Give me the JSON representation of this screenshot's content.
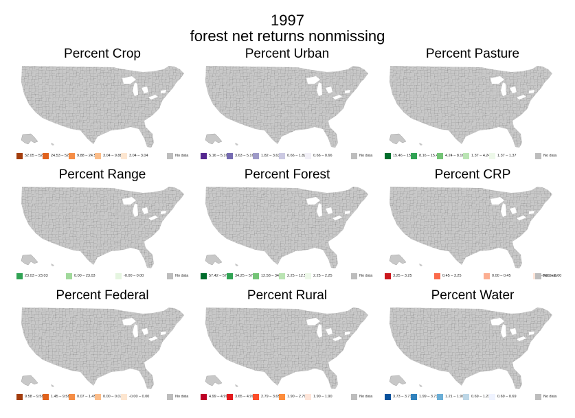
{
  "title": {
    "line1": "1997",
    "line2": "forest net returns nonmissing"
  },
  "colors": {
    "map_fill": "#c8c8c8",
    "map_border": "#6f6f6f",
    "no_data": "#bdbdbd"
  },
  "chart_data": [
    {
      "type": "choropleth",
      "title": "Percent Crop",
      "map_data": "none",
      "legend": [
        {
          "label": "52.05 – 52.05",
          "color": "#a33d0d"
        },
        {
          "label": "24.53 – 52.05",
          "color": "#e0621d"
        },
        {
          "label": "9.88 – 24.53",
          "color": "#f58d45"
        },
        {
          "label": "3.04 – 9.88",
          "color": "#fbbd8a"
        },
        {
          "label": "3.04 – 3.04",
          "color": "#fde6d0"
        },
        {
          "label": "No data",
          "color": "#bdbdbd"
        }
      ]
    },
    {
      "type": "choropleth",
      "title": "Percent Urban",
      "map_data": "none",
      "legend": [
        {
          "label": "5.16 – 5.16",
          "color": "#54278f"
        },
        {
          "label": "3.63 – 5.16",
          "color": "#756bb1"
        },
        {
          "label": "1.82 – 3.63",
          "color": "#9e9ac8"
        },
        {
          "label": "0.66 – 1.82",
          "color": "#cbc9e2"
        },
        {
          "label": "0.66 – 0.66",
          "color": "#f2f0f7"
        },
        {
          "label": "No data",
          "color": "#bdbdbd"
        }
      ]
    },
    {
      "type": "choropleth",
      "title": "Percent Pasture",
      "map_data": "none",
      "legend": [
        {
          "label": "15.46 – 15.46",
          "color": "#006d2c"
        },
        {
          "label": "8.16 – 15.46",
          "color": "#31a354"
        },
        {
          "label": "4.24 – 8.16",
          "color": "#74c476"
        },
        {
          "label": "1.37 – 4.24",
          "color": "#bae4b3"
        },
        {
          "label": "1.37 – 1.37",
          "color": "#edf8e9"
        },
        {
          "label": "No data",
          "color": "#bdbdbd"
        }
      ]
    },
    {
      "type": "choropleth",
      "title": "Percent Range",
      "map_data": "none",
      "legend": [
        {
          "label": "23.03 – 23.03",
          "color": "#31a354"
        },
        {
          "label": "0.00 – 23.03",
          "color": "#a1d99b"
        },
        {
          "label": "-0.00 – 0.00",
          "color": "#e5f5e0"
        },
        {
          "label": "No data",
          "color": "#bdbdbd"
        }
      ]
    },
    {
      "type": "choropleth",
      "title": "Percent Forest",
      "map_data": "none",
      "legend": [
        {
          "label": "57.42 – 57.42",
          "color": "#006d2c"
        },
        {
          "label": "34.25 – 57.42",
          "color": "#31a354"
        },
        {
          "label": "12.58 – 34.25",
          "color": "#74c476"
        },
        {
          "label": "2.25 – 12.58",
          "color": "#bae4b3"
        },
        {
          "label": "2.25 – 2.25",
          "color": "#edf8e9"
        },
        {
          "label": "No data",
          "color": "#bdbdbd"
        }
      ]
    },
    {
      "type": "choropleth",
      "title": "Percent CRP",
      "map_data": "none",
      "legend": [
        {
          "label": "3.25 – 3.25",
          "color": "#cb181d"
        },
        {
          "label": "0.45 – 3.25",
          "color": "#fb6a4a"
        },
        {
          "label": "0.00 – 0.45",
          "color": "#fcae91"
        },
        {
          "label": "-0.00 – 0.00",
          "color": "#fee5d9"
        },
        {
          "label": "No data",
          "color": "#bdbdbd"
        }
      ]
    },
    {
      "type": "choropleth",
      "title": "Percent Federal",
      "map_data": "none",
      "legend": [
        {
          "label": "9.58 – 9.58",
          "color": "#a33d0d"
        },
        {
          "label": "1.45 – 9.58",
          "color": "#e0621d"
        },
        {
          "label": "0.07 – 1.45",
          "color": "#f58d45"
        },
        {
          "label": "0.00 – 0.07",
          "color": "#fbbd8a"
        },
        {
          "label": "-0.00 – 0.00",
          "color": "#fde6d0"
        },
        {
          "label": "No data",
          "color": "#bdbdbd"
        }
      ]
    },
    {
      "type": "choropleth",
      "title": "Percent Rural",
      "map_data": "none",
      "legend": [
        {
          "label": "4.99 – 4.99",
          "color": "#bd0026"
        },
        {
          "label": "3.65 – 4.99",
          "color": "#e31a1c"
        },
        {
          "label": "2.79 – 3.65",
          "color": "#fc4e2a"
        },
        {
          "label": "1.90 – 2.79",
          "color": "#fd8d3c"
        },
        {
          "label": "1.90 – 1.90",
          "color": "#fee5d9"
        },
        {
          "label": "No data",
          "color": "#bdbdbd"
        }
      ]
    },
    {
      "type": "choropleth",
      "title": "Percent Water",
      "map_data": "none",
      "legend": [
        {
          "label": "3.73 – 3.73",
          "color": "#08519c"
        },
        {
          "label": "1.99 – 3.73",
          "color": "#3182bd"
        },
        {
          "label": "1.21 – 1.99",
          "color": "#6baed6"
        },
        {
          "label": "0.69 – 1.21",
          "color": "#bdd7e7"
        },
        {
          "label": "0.69 – 0.69",
          "color": "#eff3ff"
        },
        {
          "label": "No data",
          "color": "#bdbdbd"
        }
      ]
    }
  ]
}
